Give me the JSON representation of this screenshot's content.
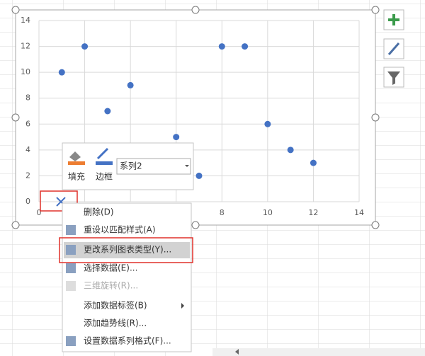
{
  "chart_data": {
    "type": "scatter",
    "x": [
      1,
      2,
      3,
      4,
      6,
      7,
      8,
      9,
      10,
      11,
      12
    ],
    "values": [
      10,
      12,
      7,
      9,
      5,
      2,
      12,
      12,
      6,
      4,
      3
    ],
    "color": "#4472c4",
    "xlim": [
      0,
      14
    ],
    "xticks": [
      0,
      2,
      4,
      6,
      8,
      10,
      12,
      14
    ],
    "ylim": [
      0,
      14
    ],
    "yticks": [
      0,
      2,
      4,
      6,
      8,
      10,
      12,
      14
    ],
    "grid": true
  },
  "toolbar": {
    "fill": "填充",
    "border": "边框",
    "series": "系列2"
  },
  "menu": {
    "items": [
      "删除(D)",
      "重设以匹配样式(A)",
      "更改系列图表类型(Y)...",
      "选择数据(E)...",
      "三维旋转(R)...",
      "添加数据标签(B)",
      "添加趋势线(R)...",
      "设置数据系列格式(F)..."
    ]
  }
}
